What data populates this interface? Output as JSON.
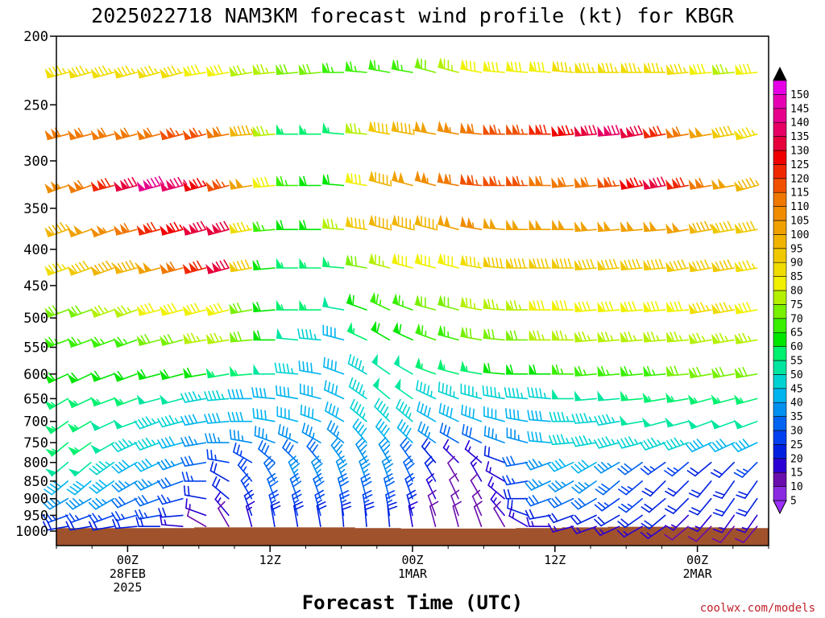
{
  "credit": "coolwx.com/models",
  "chart_data": {
    "type": "wind-barb-timeseries",
    "title": "2025022718 NAM3KM forecast wind profile (kt) for KBGR",
    "xlabel": "Forecast Time (UTC)",
    "ylabel": "",
    "x_ticks": [
      {
        "hour": 6,
        "lines": [
          "00Z",
          "28FEB",
          "2025"
        ]
      },
      {
        "hour": 18,
        "lines": [
          "12Z"
        ]
      },
      {
        "hour": 30,
        "lines": [
          "00Z",
          "1MAR"
        ]
      },
      {
        "hour": 42,
        "lines": [
          "12Z"
        ]
      },
      {
        "hour": 54,
        "lines": [
          "00Z",
          "2MAR"
        ]
      }
    ],
    "x_range_hours": [
      0,
      60
    ],
    "y_ticks": [
      200,
      250,
      300,
      350,
      400,
      450,
      500,
      550,
      600,
      650,
      700,
      750,
      800,
      850,
      900,
      950,
      1000
    ],
    "y_range_hpa": [
      1000,
      200
    ],
    "y_scale": "log",
    "surface_color": "#a0522d",
    "colorbar": {
      "levels": [
        5,
        10,
        15,
        20,
        25,
        30,
        35,
        40,
        45,
        50,
        55,
        60,
        65,
        70,
        75,
        80,
        85,
        90,
        95,
        100,
        105,
        110,
        115,
        120,
        125,
        130,
        135,
        140,
        145,
        150
      ],
      "colors": [
        "#8a2be2",
        "#6a0dad",
        "#2a00d4",
        "#0020e0",
        "#0040f0",
        "#0064f0",
        "#0090f0",
        "#00b4f0",
        "#00d2d2",
        "#00e6a0",
        "#00f070",
        "#00e600",
        "#38f000",
        "#78f000",
        "#b4f000",
        "#f0f000",
        "#f0dc00",
        "#f0c800",
        "#f0b400",
        "#f0a000",
        "#f08c00",
        "#f07800",
        "#f05000",
        "#f02800",
        "#f00000",
        "#e6003c",
        "#e60064",
        "#e6008c",
        "#e600b4",
        "#e600e6"
      ],
      "under_color": "#9b30ff",
      "over_color": "#000000"
    },
    "series": [
      {
        "level": 225,
        "dir": [
          255,
          255,
          255,
          255,
          255,
          255,
          260,
          260,
          260,
          265,
          265,
          265,
          270,
          275,
          280,
          280,
          285,
          285,
          280,
          275,
          275,
          275,
          275,
          270,
          270,
          270,
          270,
          265,
          265,
          265,
          265
        ],
        "spd": [
          85,
          85,
          85,
          85,
          85,
          85,
          80,
          80,
          75,
          75,
          70,
          70,
          65,
          65,
          65,
          65,
          70,
          75,
          80,
          80,
          80,
          80,
          85,
          85,
          85,
          85,
          85,
          85,
          80,
          75,
          80
        ]
      },
      {
        "level": 275,
        "dir": [
          255,
          255,
          255,
          255,
          255,
          255,
          255,
          260,
          265,
          265,
          270,
          270,
          275,
          275,
          280,
          280,
          280,
          280,
          275,
          270,
          270,
          270,
          265,
          265,
          265,
          260,
          260,
          260,
          260,
          260,
          255
        ],
        "spd": [
          110,
          110,
          110,
          110,
          110,
          115,
          115,
          110,
          95,
          75,
          55,
          55,
          55,
          75,
          90,
          95,
          100,
          105,
          110,
          115,
          115,
          120,
          125,
          130,
          135,
          130,
          120,
          110,
          100,
          90,
          85
        ]
      },
      {
        "level": 325,
        "dir": [
          250,
          250,
          255,
          255,
          255,
          255,
          255,
          255,
          260,
          265,
          270,
          270,
          275,
          280,
          285,
          285,
          285,
          280,
          275,
          270,
          270,
          270,
          265,
          265,
          265,
          260,
          260,
          260,
          260,
          260,
          255
        ],
        "spd": [
          105,
          110,
          120,
          130,
          140,
          135,
          125,
          115,
          100,
          80,
          65,
          60,
          60,
          80,
          95,
          100,
          105,
          110,
          115,
          115,
          115,
          110,
          110,
          110,
          115,
          125,
          130,
          120,
          110,
          100,
          95
        ]
      },
      {
        "level": 375,
        "dir": [
          250,
          250,
          250,
          255,
          255,
          255,
          255,
          255,
          260,
          265,
          270,
          270,
          275,
          280,
          285,
          285,
          285,
          285,
          280,
          275,
          270,
          270,
          270,
          265,
          265,
          265,
          265,
          260,
          260,
          260,
          260
        ],
        "spd": [
          95,
          100,
          105,
          110,
          120,
          125,
          130,
          130,
          85,
          65,
          60,
          60,
          75,
          90,
          95,
          95,
          95,
          100,
          105,
          100,
          100,
          100,
          100,
          100,
          100,
          100,
          100,
          100,
          95,
          90,
          90
        ]
      },
      {
        "level": 425,
        "dir": [
          250,
          250,
          250,
          255,
          255,
          255,
          255,
          255,
          260,
          265,
          270,
          270,
          275,
          280,
          285,
          285,
          285,
          285,
          280,
          275,
          270,
          270,
          270,
          265,
          265,
          265,
          265,
          260,
          260,
          260,
          260
        ],
        "spd": [
          85,
          90,
          95,
          95,
          100,
          110,
          120,
          130,
          90,
          60,
          55,
          55,
          55,
          70,
          75,
          80,
          80,
          80,
          85,
          90,
          90,
          90,
          90,
          90,
          90,
          90,
          90,
          90,
          90,
          90,
          85
        ]
      },
      {
        "level": 487,
        "dir": [
          250,
          250,
          250,
          250,
          255,
          255,
          255,
          255,
          260,
          265,
          270,
          270,
          280,
          290,
          295,
          290,
          285,
          285,
          280,
          275,
          270,
          270,
          270,
          265,
          265,
          265,
          265,
          265,
          260,
          260,
          260
        ],
        "spd": [
          70,
          70,
          75,
          75,
          80,
          80,
          80,
          80,
          70,
          60,
          55,
          55,
          50,
          60,
          65,
          65,
          70,
          70,
          75,
          75,
          75,
          80,
          80,
          80,
          80,
          80,
          80,
          80,
          85,
          85,
          80
        ]
      },
      {
        "level": 537,
        "dir": [
          250,
          250,
          250,
          250,
          255,
          255,
          260,
          260,
          265,
          270,
          275,
          275,
          285,
          295,
          300,
          295,
          290,
          285,
          280,
          275,
          270,
          270,
          270,
          265,
          265,
          265,
          265,
          265,
          260,
          260,
          260
        ],
        "spd": [
          65,
          65,
          65,
          65,
          70,
          70,
          75,
          75,
          70,
          60,
          50,
          45,
          40,
          55,
          60,
          60,
          65,
          65,
          70,
          70,
          70,
          75,
          75,
          75,
          75,
          75,
          75,
          75,
          75,
          75,
          75
        ]
      },
      {
        "level": 600,
        "dir": [
          245,
          245,
          250,
          250,
          255,
          255,
          260,
          260,
          265,
          270,
          275,
          280,
          290,
          300,
          305,
          300,
          290,
          285,
          280,
          275,
          270,
          270,
          270,
          265,
          265,
          265,
          265,
          265,
          260,
          260,
          260
        ],
        "spd": [
          60,
          60,
          60,
          60,
          60,
          60,
          60,
          55,
          55,
          50,
          45,
          40,
          40,
          45,
          50,
          50,
          55,
          55,
          55,
          60,
          60,
          60,
          65,
          65,
          65,
          65,
          65,
          70,
          70,
          70,
          70
        ]
      },
      {
        "level": 650,
        "dir": [
          240,
          245,
          250,
          250,
          255,
          255,
          260,
          265,
          270,
          275,
          280,
          285,
          295,
          305,
          310,
          305,
          295,
          290,
          285,
          280,
          275,
          275,
          270,
          265,
          265,
          265,
          260,
          260,
          255,
          255,
          255
        ],
        "spd": [
          55,
          55,
          55,
          55,
          50,
          50,
          45,
          45,
          40,
          40,
          40,
          40,
          40,
          45,
          50,
          50,
          45,
          45,
          45,
          45,
          45,
          45,
          50,
          50,
          50,
          55,
          55,
          55,
          55,
          55,
          55
        ]
      },
      {
        "level": 700,
        "dir": [
          235,
          240,
          245,
          250,
          250,
          255,
          260,
          265,
          270,
          280,
          285,
          290,
          300,
          310,
          315,
          310,
          300,
          295,
          290,
          285,
          280,
          275,
          270,
          265,
          260,
          260,
          255,
          255,
          250,
          250,
          250
        ],
        "spd": [
          55,
          55,
          50,
          50,
          45,
          45,
          40,
          40,
          40,
          40,
          40,
          40,
          40,
          45,
          45,
          45,
          40,
          40,
          40,
          40,
          40,
          40,
          45,
          45,
          45,
          50,
          50,
          50,
          50,
          50,
          50
        ]
      },
      {
        "level": 750,
        "dir": [
          230,
          235,
          240,
          245,
          250,
          255,
          260,
          270,
          280,
          290,
          295,
          300,
          310,
          320,
          320,
          315,
          305,
          300,
          295,
          290,
          285,
          275,
          265,
          260,
          255,
          255,
          250,
          250,
          245,
          245,
          245
        ],
        "spd": [
          55,
          55,
          50,
          45,
          45,
          40,
          35,
          35,
          35,
          35,
          35,
          35,
          35,
          40,
          40,
          40,
          35,
          30,
          30,
          35,
          35,
          40,
          45,
          45,
          45,
          45,
          45,
          45,
          40,
          40,
          40
        ]
      },
      {
        "level": 800,
        "dir": [
          230,
          230,
          235,
          240,
          245,
          250,
          260,
          280,
          300,
          310,
          315,
          320,
          325,
          330,
          330,
          325,
          320,
          315,
          310,
          290,
          260,
          250,
          245,
          240,
          240,
          235,
          235,
          230,
          230,
          225,
          225
        ],
        "spd": [
          50,
          50,
          45,
          40,
          40,
          35,
          30,
          25,
          25,
          30,
          30,
          30,
          35,
          35,
          35,
          30,
          20,
          15,
          15,
          20,
          30,
          35,
          40,
          40,
          35,
          30,
          25,
          25,
          20,
          20,
          25
        ]
      },
      {
        "level": 850,
        "dir": [
          230,
          230,
          235,
          240,
          245,
          250,
          270,
          300,
          320,
          330,
          335,
          335,
          340,
          340,
          340,
          335,
          330,
          330,
          330,
          300,
          260,
          245,
          240,
          235,
          230,
          230,
          225,
          225,
          220,
          215,
          215
        ],
        "spd": [
          40,
          40,
          40,
          35,
          35,
          30,
          25,
          20,
          25,
          30,
          35,
          35,
          35,
          35,
          35,
          30,
          20,
          10,
          15,
          15,
          25,
          35,
          35,
          35,
          30,
          25,
          20,
          20,
          20,
          20,
          20
        ]
      },
      {
        "level": 900,
        "dir": [
          240,
          240,
          240,
          245,
          250,
          255,
          280,
          310,
          330,
          340,
          340,
          340,
          345,
          345,
          345,
          340,
          335,
          335,
          330,
          310,
          270,
          250,
          245,
          240,
          235,
          230,
          230,
          225,
          220,
          215,
          215
        ],
        "spd": [
          35,
          35,
          35,
          30,
          30,
          25,
          20,
          20,
          25,
          30,
          30,
          30,
          30,
          30,
          30,
          25,
          15,
          10,
          10,
          15,
          20,
          30,
          30,
          30,
          25,
          25,
          20,
          20,
          20,
          20,
          20
        ]
      },
      {
        "level": 950,
        "dir": [
          250,
          250,
          250,
          255,
          260,
          265,
          290,
          320,
          340,
          345,
          345,
          345,
          350,
          350,
          350,
          345,
          340,
          340,
          335,
          320,
          290,
          260,
          250,
          245,
          240,
          235,
          230,
          225,
          220,
          215,
          215
        ],
        "spd": [
          25,
          25,
          25,
          25,
          25,
          20,
          15,
          15,
          20,
          25,
          25,
          25,
          25,
          25,
          25,
          20,
          10,
          10,
          10,
          15,
          20,
          20,
          20,
          20,
          20,
          20,
          20,
          15,
          15,
          15,
          15
        ]
      },
      {
        "level": 985,
        "dir": [
          260,
          260,
          260,
          265,
          270,
          275,
          300,
          330,
          345,
          350,
          350,
          350,
          355,
          355,
          355,
          350,
          345,
          345,
          340,
          330,
          300,
          270,
          255,
          250,
          245,
          240,
          235,
          230,
          225,
          220,
          220
        ],
        "spd": [
          20,
          20,
          20,
          20,
          20,
          15,
          10,
          10,
          15,
          20,
          20,
          20,
          20,
          20,
          20,
          15,
          10,
          10,
          10,
          10,
          15,
          15,
          15,
          15,
          15,
          15,
          15,
          10,
          10,
          10,
          10
        ]
      }
    ],
    "surface_pressure": [
      990,
      990,
      990,
      990,
      990,
      990,
      988,
      988,
      988,
      988,
      988,
      988,
      988,
      990,
      990,
      992,
      992,
      992,
      992,
      992,
      990,
      990,
      988,
      988,
      986,
      986,
      986,
      988,
      988,
      990,
      990
    ]
  }
}
